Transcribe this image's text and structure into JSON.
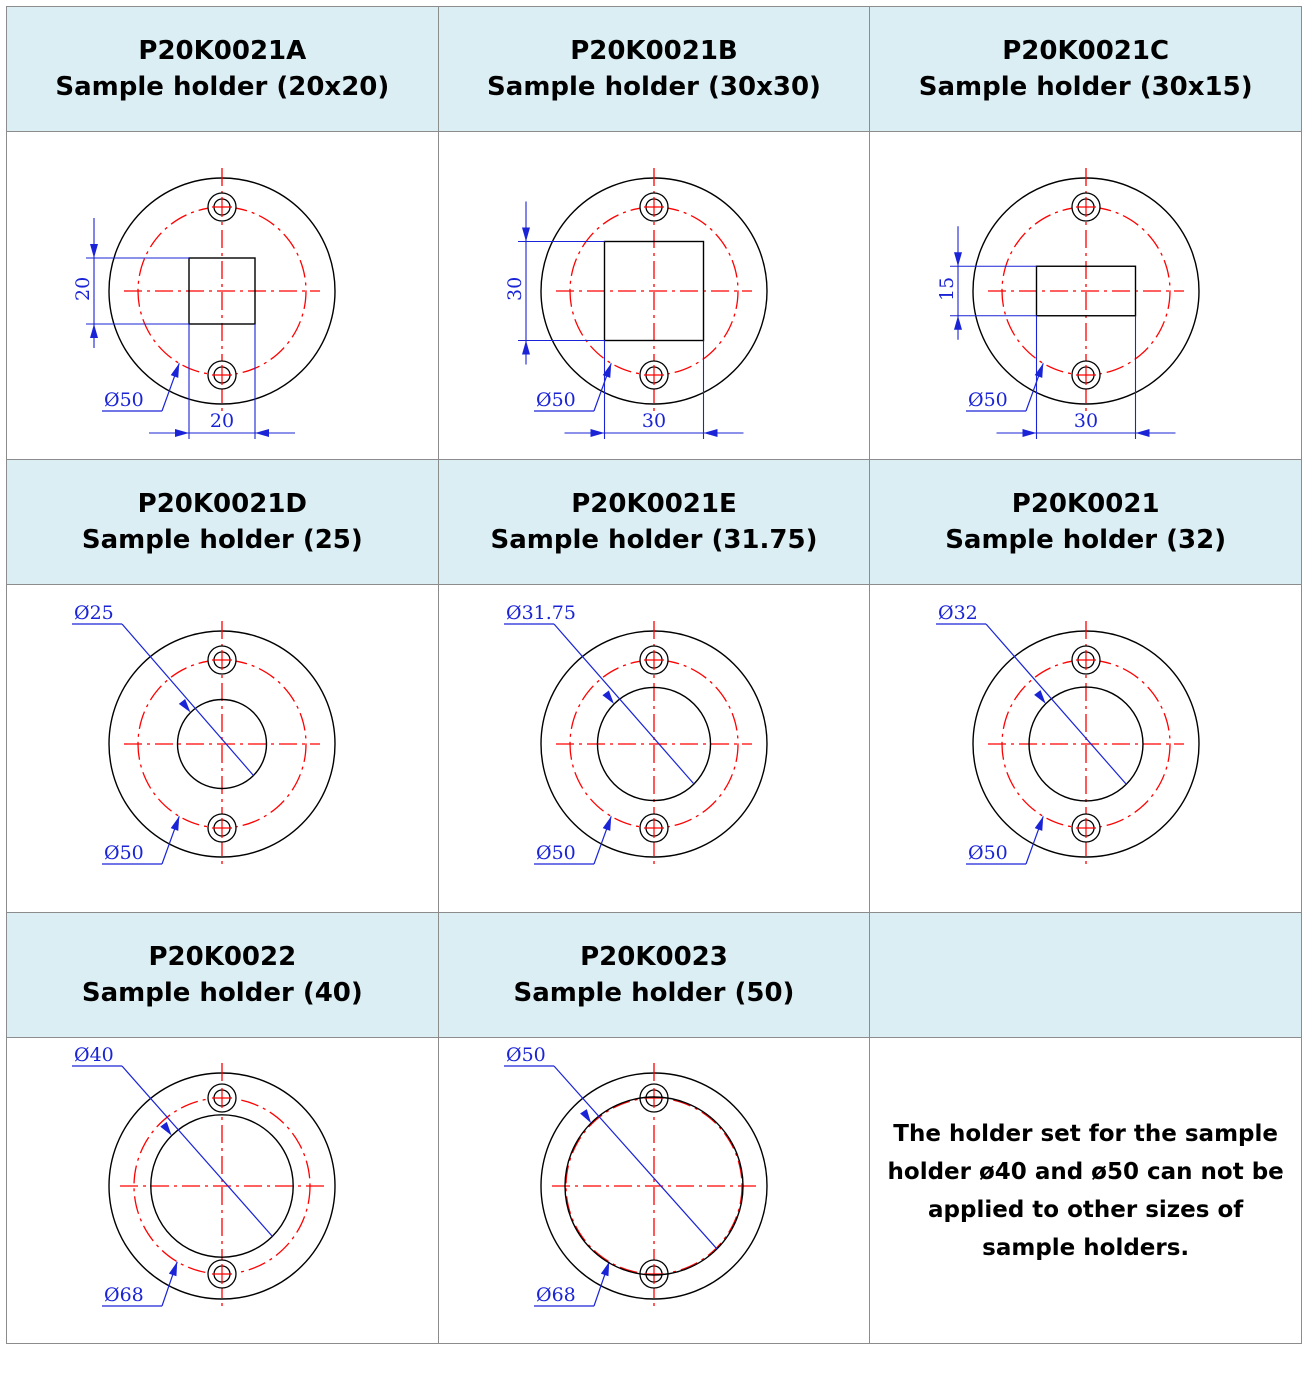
{
  "cells": [
    {
      "code": "P20K0021A",
      "title": "Sample holder (20x20)",
      "kind": "square",
      "w": 20,
      "h": 20,
      "dim_w": "20",
      "dim_h": "20",
      "dim_outer": "Ø50"
    },
    {
      "code": "P20K0021B",
      "title": "Sample holder (30x30)",
      "kind": "square",
      "w": 30,
      "h": 30,
      "dim_w": "30",
      "dim_h": "30",
      "dim_outer": "Ø50"
    },
    {
      "code": "P20K0021C",
      "title": "Sample holder (30x15)",
      "kind": "square",
      "w": 30,
      "h": 15,
      "dim_w": "30",
      "dim_h": "15",
      "dim_outer": "Ø50"
    },
    {
      "code": "P20K0021D",
      "title": "Sample holder (25)",
      "kind": "round",
      "d": 25,
      "dim_inner": "Ø25",
      "dim_outer": "Ø50"
    },
    {
      "code": "P20K0021E",
      "title": "Sample holder (31.75)",
      "kind": "round",
      "d": 31.75,
      "dim_inner": "Ø31.75",
      "dim_outer": "Ø50"
    },
    {
      "code": "P20K0021",
      "title": "Sample holder (32)",
      "kind": "round",
      "d": 32,
      "dim_inner": "Ø32",
      "dim_outer": "Ø50"
    },
    {
      "code": "P20K0022",
      "title": "Sample holder (40)",
      "kind": "round",
      "d": 40,
      "dim_inner": "Ø40",
      "dim_outer": "Ø68"
    },
    {
      "code": "P20K0023",
      "title": "Sample holder (50)",
      "kind": "round",
      "d": 50,
      "dim_inner": "Ø50",
      "dim_outer": "Ø68"
    }
  ],
  "note": "The holder set for  the  sample holder ø40 and ø50 can not be applied to other sizes of sample holders.",
  "colors": {
    "header_bg": "#dbeef4",
    "border": "#8c8c8c",
    "outline": "#000000",
    "centerline": "#ff0000",
    "dimension": "#1a24d6"
  }
}
